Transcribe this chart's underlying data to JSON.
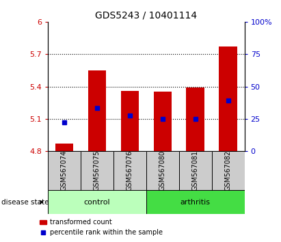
{
  "title": "GDS5243 / 10401114",
  "samples": [
    "GSM567074",
    "GSM567075",
    "GSM567076",
    "GSM567080",
    "GSM567081",
    "GSM567082"
  ],
  "bar_tops": [
    4.87,
    5.55,
    5.36,
    5.35,
    5.39,
    5.77
  ],
  "bar_bottom": 4.8,
  "percentile_values": [
    5.07,
    5.2,
    5.13,
    5.1,
    5.1,
    5.27
  ],
  "ylim_left": [
    4.8,
    6.0
  ],
  "ylim_right": [
    0,
    100
  ],
  "yticks_left": [
    4.8,
    5.1,
    5.4,
    5.7,
    6.0
  ],
  "yticks_right": [
    0,
    25,
    50,
    75,
    100
  ],
  "ytick_labels_left": [
    "4.8",
    "5.1",
    "5.4",
    "5.7",
    "6"
  ],
  "ytick_labels_right": [
    "0",
    "25",
    "50",
    "75",
    "100%"
  ],
  "bar_color": "#cc0000",
  "marker_color": "#0000cc",
  "control_label": "control",
  "arthritis_label": "arthritis",
  "control_color": "#bbffbb",
  "arthritis_color": "#44dd44",
  "group_box_color": "#cccccc",
  "legend_bar_label": "transformed count",
  "legend_marker_label": "percentile rank within the sample",
  "disease_state_label": "disease state",
  "bar_width": 0.55,
  "gridline_y": [
    5.1,
    5.4,
    5.7
  ]
}
